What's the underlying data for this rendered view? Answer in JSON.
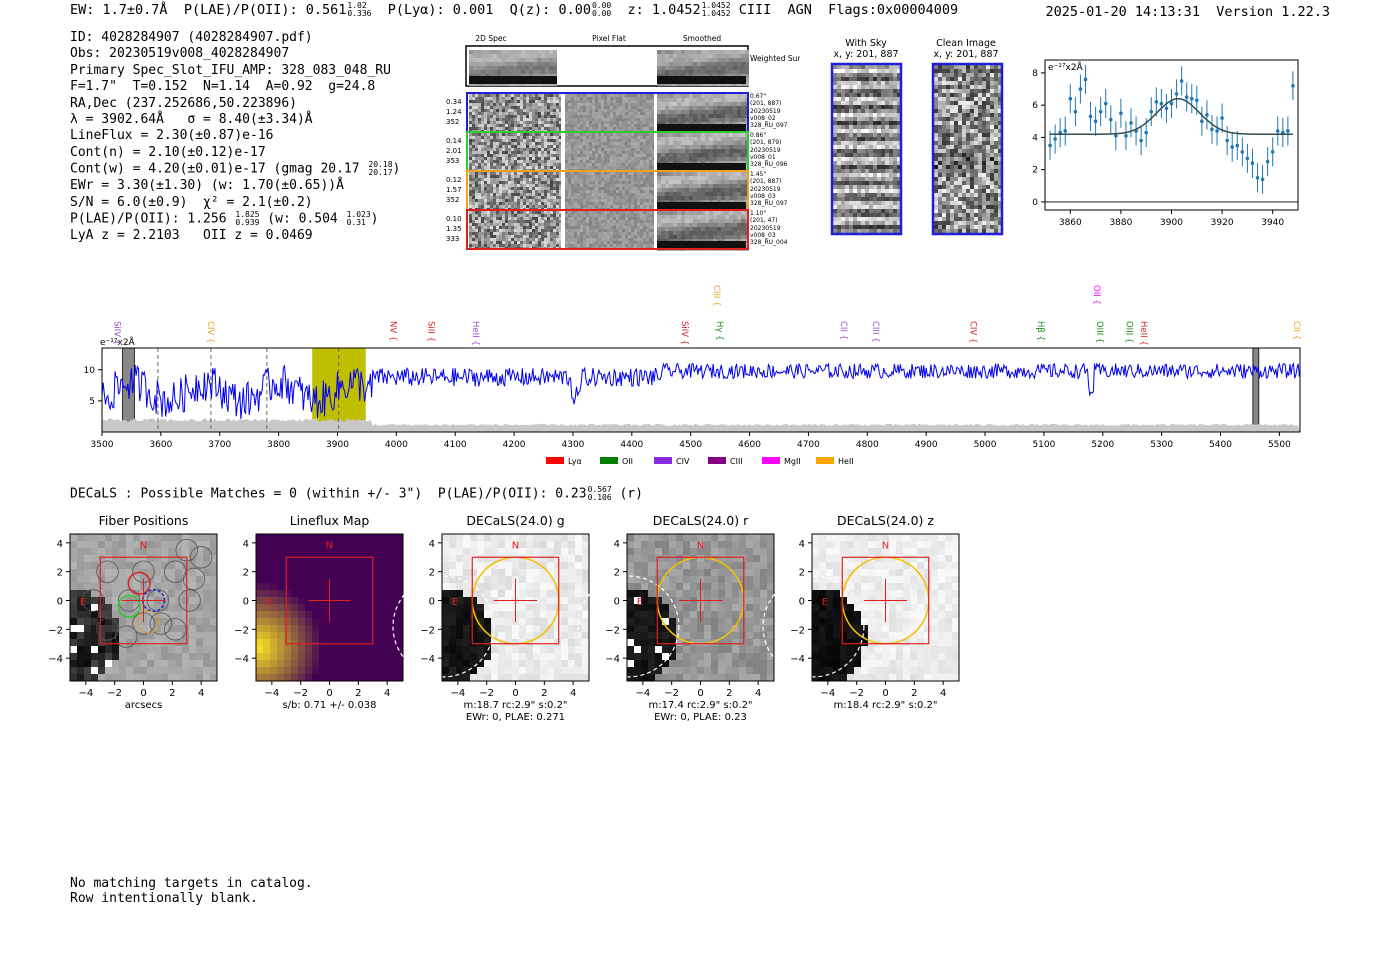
{
  "header": {
    "ew": "EW: 1.7±0.7Å",
    "plae": "P(LAE)/P(OII): 0.561",
    "plae_hi": "1.02",
    "plae_lo": "0.336",
    "plya": "P(Lyα): 0.001",
    "qz": "Q(z): 0.00",
    "qz_hi": "0.00",
    "qz_lo": "0.00",
    "z": "z: 1.0452",
    "z_hi": "1.0452",
    "z_lo": "1.0452",
    "flags": "CIII  AGN  Flags:0x00004009",
    "timestamp": "2025-01-20 14:13:31  Version 1.22.3"
  },
  "info": {
    "id": "ID: 4028284907 (4028284907.pdf)",
    "obs": "Obs: 20230519v008_4028284907",
    "primary": "Primary Spec_Slot_IFU_AMP: 328_083_048_RU",
    "fwhm": "F=1.7\"  T=0.152  N=1.14  A=0.92  g=24.8",
    "radec": "RA,Dec (237.252686,50.223896)",
    "lambda": "λ = 3902.64Å   σ = 8.40(±3.34)Å",
    "lineflux": "LineFlux = 2.30(±0.87)e-16",
    "contn": "Cont(n) = 2.10(±0.12)e-17",
    "contw": "Cont(w) = 4.20(±0.01)e-17 (gmag 20.17",
    "contw_hi": "20.18",
    "contw_lo": "20.17",
    "ewr": "EWr = 3.30(±1.30) (w: 1.70(±0.65))Å",
    "sn": "S/N = 6.0(±0.9)  χ² = 2.1(±0.2)",
    "plae2": "P(LAE)/P(OII): 1.256",
    "plae2_hi": "1.825",
    "plae2_lo": "0.939",
    "plae2w": "(w: 0.504",
    "plae2w_hi": "1.023",
    "plae2w_lo": "0.31",
    "lya": "LyA z = 2.2103   OII z = 0.0469"
  },
  "cutouts": {
    "col_2d": "2D Spec",
    "col_flat": "Pixel Flat",
    "col_smooth": "Smoothed",
    "weighted": "Weighted Sum",
    "rows": [
      {
        "w": "0.34",
        "s": "1.24",
        "n": "352",
        "r1": "0.67\"",
        "r2": "(201, 887)",
        "r3": "20230519",
        "r4": "v008_02",
        "r5": "328_RU_097",
        "color": "#1f1fd8"
      },
      {
        "w": "0.14",
        "s": "2.01",
        "n": "353",
        "r1": "0.86\"",
        "r2": "(201, 879)",
        "r3": "20230519",
        "r4": "v008_01",
        "r5": "328_RU_096",
        "color": "#2ecc2e"
      },
      {
        "w": "0.12",
        "s": "1.57",
        "n": "352",
        "r1": "1.45\"",
        "r2": "(201, 887)",
        "r3": "20230519",
        "r4": "v008_03",
        "r5": "328_RU_097",
        "color": "#f0a020"
      },
      {
        "w": "0.10",
        "s": "1.35",
        "n": "333",
        "r1": "1.10\"",
        "r2": "(201, 47)",
        "r3": "20230519",
        "r4": "v008_03",
        "r5": "328_RU_004",
        "color": "#e02020"
      }
    ],
    "with_sky": "With Sky",
    "with_sky_xy": "x, y: 201, 887",
    "clean": "Clean Image",
    "clean_xy": "x, y: 201, 887"
  },
  "fit_chart": {
    "type": "scatter",
    "ylabel": "e⁻¹⁷x2Å",
    "xlim": [
      3850,
      3950
    ],
    "ylim": [
      -0.5,
      8.8
    ],
    "xticks": [
      3860,
      3880,
      3900,
      3920,
      3940
    ],
    "yticks": [
      0,
      2,
      4,
      6,
      8
    ],
    "x": [
      3852,
      3854,
      3856,
      3858,
      3860,
      3862,
      3864,
      3866,
      3868,
      3870,
      3872,
      3874,
      3876,
      3878,
      3880,
      3882,
      3884,
      3886,
      3888,
      3890,
      3892,
      3894,
      3896,
      3898,
      3900,
      3902,
      3904,
      3906,
      3908,
      3910,
      3912,
      3914,
      3916,
      3918,
      3920,
      3922,
      3924,
      3926,
      3928,
      3930,
      3932,
      3934,
      3936,
      3938,
      3940,
      3942,
      3944,
      3946,
      3948
    ],
    "y": [
      3.5,
      3.9,
      4.3,
      4.4,
      6.4,
      5.6,
      7.0,
      7.6,
      5.3,
      5.0,
      5.6,
      6.1,
      5.1,
      4.1,
      5.5,
      4.1,
      4.9,
      4.4,
      3.8,
      4.3,
      5.6,
      6.2,
      6.1,
      5.8,
      6.1,
      6.7,
      7.5,
      6.5,
      6.4,
      6.3,
      5.0,
      5.4,
      4.5,
      4.4,
      5.2,
      3.8,
      3.4,
      3.5,
      3.1,
      2.7,
      2.4,
      1.5,
      1.4,
      2.5,
      3.1,
      4.4,
      4.3,
      4.4,
      7.2
    ],
    "err": [
      0.9,
      0.9,
      0.9,
      0.9,
      0.9,
      0.9,
      0.9,
      0.9,
      0.9,
      0.9,
      0.9,
      0.9,
      0.9,
      0.9,
      0.9,
      0.9,
      0.9,
      0.9,
      0.9,
      0.9,
      0.9,
      0.9,
      0.9,
      0.9,
      0.9,
      0.9,
      0.9,
      0.9,
      0.9,
      0.9,
      0.9,
      0.9,
      0.9,
      0.9,
      0.9,
      0.9,
      0.9,
      0.9,
      0.9,
      0.9,
      0.9,
      0.9,
      0.9,
      0.9,
      0.9,
      0.9,
      0.9,
      0.9,
      0.9
    ],
    "model": {
      "continuum": 4.2,
      "amp": 2.2,
      "center": 3902.64,
      "sigma": 8.4
    }
  },
  "full_spectrum": {
    "type": "line",
    "ylabel": "e⁻¹⁷x2Å",
    "xlim": [
      3500,
      5535
    ],
    "ylim": [
      0,
      13.5
    ],
    "xticks": [
      3500,
      3600,
      3700,
      3800,
      3900,
      4000,
      4100,
      4200,
      4300,
      4400,
      4500,
      4600,
      4700,
      4800,
      4900,
      5000,
      5100,
      5200,
      5300,
      5400,
      5500
    ],
    "yticks": [
      5,
      10
    ],
    "highlight": [
      3857,
      3948
    ],
    "dashed_lines": [
      3595,
      3685,
      3780,
      3902
    ],
    "masked": [
      [
        3535,
        3555
      ],
      [
        5455,
        5465
      ]
    ],
    "lines": [
      {
        "name": "SiIV",
        "x": 3521,
        "color": "#9b4dd6",
        "tier": "mid"
      },
      {
        "name": "CIV",
        "x": 3680,
        "color": "#f0a020",
        "tier": "mid"
      },
      {
        "name": "NV",
        "x": 3990,
        "color": "#e02020",
        "tier": "mid"
      },
      {
        "name": "SiII",
        "x": 4055,
        "color": "#e02020",
        "tier": "mid"
      },
      {
        "name": "HeII",
        "x": 4130,
        "color": "#9b4dd6",
        "tier": "mid"
      },
      {
        "name": "SiIV",
        "x": 4485,
        "color": "#e02020",
        "tier": "mid"
      },
      {
        "name": "CIII",
        "x": 4540,
        "color": "#f0a020",
        "tier": "high"
      },
      {
        "name": "Hγ",
        "x": 4545,
        "color": "#1a8c1a",
        "tier": "mid"
      },
      {
        "name": "CII",
        "x": 4755,
        "color": "#9b4dd6",
        "tier": "mid"
      },
      {
        "name": "CIII",
        "x": 4810,
        "color": "#9b4dd6",
        "tier": "mid"
      },
      {
        "name": "CIV",
        "x": 4975,
        "color": "#e02020",
        "tier": "mid"
      },
      {
        "name": "Hβ",
        "x": 5090,
        "color": "#1a8c1a",
        "tier": "mid"
      },
      {
        "name": "OII",
        "x": 5185,
        "color": "#ff00ff",
        "tier": "high"
      },
      {
        "name": "OIII",
        "x": 5190,
        "color": "#1a8c1a",
        "tier": "mid"
      },
      {
        "name": "OIII",
        "x": 5240,
        "color": "#1a8c1a",
        "tier": "mid"
      },
      {
        "name": "HeII",
        "x": 5265,
        "color": "#e02020",
        "tier": "mid"
      },
      {
        "name": "CII",
        "x": 5525,
        "color": "#f0a020",
        "tier": "mid"
      }
    ],
    "legend": [
      {
        "name": "Lyα",
        "color": "#ff0000"
      },
      {
        "name": "OII",
        "color": "#008000"
      },
      {
        "name": "CIV",
        "color": "#8a2be2"
      },
      {
        "name": "CIII",
        "color": "#800080"
      },
      {
        "name": "MgII",
        "color": "#ff00ff"
      },
      {
        "name": "HeII",
        "color": "#ffa500"
      }
    ]
  },
  "decals": {
    "line": "DECaLS : Possible Matches = 0 (within +/- 3\")  P(LAE)/P(OII): 0.23",
    "line_hi": "0.567",
    "line_lo": "0.106",
    "line_band": "(r)",
    "north": "N",
    "east": "E",
    "ticks": [
      "−4",
      "−2",
      "0",
      "2",
      "4"
    ],
    "panels": [
      {
        "title": "Fiber Positions",
        "cap1": "arcsecs",
        "cap2": ""
      },
      {
        "title": "Lineflux Map",
        "cap1": "s/b: 0.71 +/- 0.038",
        "cap2": ""
      },
      {
        "title": "DECaLS(24.0) g",
        "cap1": "m:18.7 rc:2.9\"  s:0.2\"",
        "cap2": "EWr: 0, PLAE: 0.271"
      },
      {
        "title": "DECaLS(24.0) r",
        "cap1": "m:17.4 rc:2.9\"  s:0.2\"",
        "cap2": "EWr: 0, PLAE: 0.23"
      },
      {
        "title": "DECaLS(24.0) z",
        "cap1": "m:18.4 rc:2.9\"  s:0.2\"",
        "cap2": ""
      }
    ]
  },
  "footer": {
    "line1": "No matching targets in catalog.",
    "line2": "Row intentionally blank."
  }
}
